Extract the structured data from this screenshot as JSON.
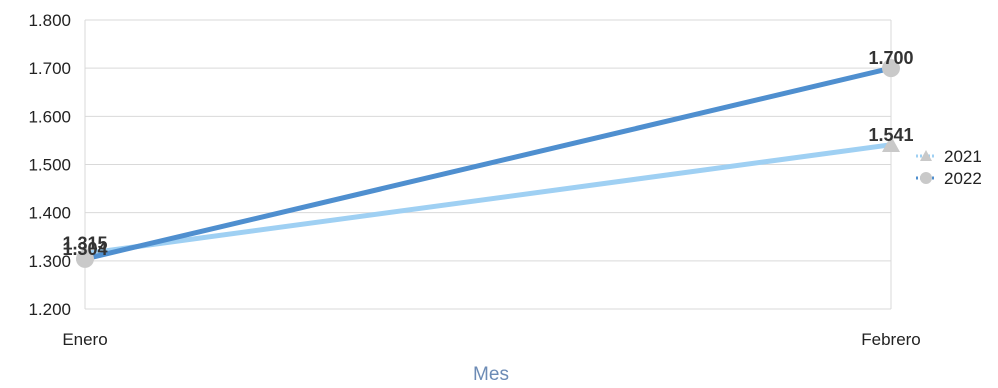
{
  "chart_data": {
    "type": "line",
    "categories": [
      "Enero",
      "Febrero"
    ],
    "series": [
      {
        "name": "2021",
        "values": [
          1315,
          1541
        ],
        "value_labels": [
          "1.315",
          "1.541"
        ],
        "color": "#9fd0f3",
        "marker": "triangle"
      },
      {
        "name": "2022",
        "values": [
          1304,
          1700
        ],
        "value_labels": [
          "1.304",
          "1.700"
        ],
        "color": "#4f8fcf",
        "marker": "circle"
      }
    ],
    "marker_color": "#c9c9c9",
    "y_ticks": [
      1200,
      1300,
      1400,
      1500,
      1600,
      1700,
      1800
    ],
    "y_tick_labels": [
      "1.200",
      "1.300",
      "1.400",
      "1.500",
      "1.600",
      "1.700",
      "1.800"
    ],
    "ylim": [
      1200,
      1800
    ],
    "xlabel": "Mes",
    "grid": true,
    "legend_position": "right"
  }
}
